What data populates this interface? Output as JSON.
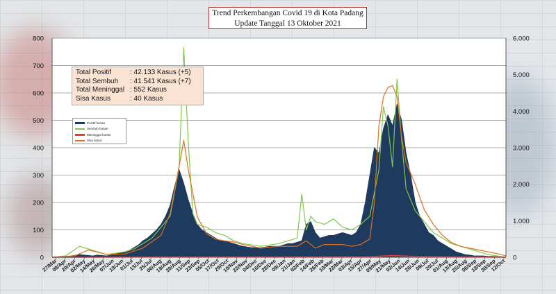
{
  "title_line1": "Trend Perkembangan Covid 19 di Kota Padang",
  "title_line2": "Update Tanggal 13 Oktober 2021",
  "summary": [
    {
      "label": "Total Positif",
      "value": ": 42.133 Kasus (+5)"
    },
    {
      "label": "Total Sembuh",
      "value": ": 41.541 Kasus (+7)"
    },
    {
      "label": "Total Meninggal",
      "value": ":    552 Kasus"
    },
    {
      "label": "Sisa Kasus",
      "value": ":      40 Kasus"
    }
  ],
  "chart_data": {
    "type": "area",
    "grid": true,
    "legend_placement": "left",
    "left_axis": {
      "ylim": [
        0,
        800
      ],
      "ticks": [
        "0",
        "100",
        "200",
        "300",
        "400",
        "500",
        "600",
        "700",
        "800"
      ]
    },
    "right_axis": {
      "ylim": [
        0,
        6000
      ],
      "ticks": [
        "0",
        "1.000",
        "2.000",
        "3.000",
        "4.000",
        "5.000",
        "6.000"
      ]
    },
    "x_ticks": [
      "27/Mar",
      "08/Apr",
      "20/Apr",
      "02/May",
      "14/May",
      "26/May",
      "07/Jun",
      "19/Jun",
      "01/Jul",
      "13/Jul",
      "25/Jul",
      "06/Aug",
      "18/Aug",
      "30/Aug",
      "11/Sep",
      "23/Sep",
      "05/Oct",
      "17/Oct",
      "29/Oct",
      "10/Nov",
      "22/Nov",
      "04/Dec",
      "16/Dec",
      "28/Dec",
      "09/Jan",
      "21/Jan",
      "02/Feb",
      "14/Feb",
      "26/Feb",
      "10/Mar",
      "22/Mar",
      "03/Apr",
      "15/Apr",
      "27/Apr",
      "09/May",
      "21/May",
      "02/Jun",
      "14/Jun",
      "26/Jun",
      "08/Jul",
      "20/Jul",
      "01/Aug",
      "13/Aug",
      "25/Aug",
      "06/Sep",
      "18/Sep",
      "30/Sep",
      "12/Oct"
    ],
    "series": [
      {
        "name": "Positif harian",
        "axis": "left",
        "color": "#1f3a5f",
        "x": [
          0,
          3,
          6,
          9,
          10,
          12,
          14,
          16,
          17,
          18,
          19,
          20,
          21,
          22,
          23,
          24,
          25,
          26,
          27,
          28,
          29,
          30,
          31,
          32,
          33,
          34,
          35,
          36,
          37,
          38,
          40,
          42,
          44,
          46,
          48,
          50,
          51,
          52,
          53,
          54,
          55,
          56,
          57,
          58,
          59,
          60,
          61,
          62,
          63,
          64,
          65,
          66,
          67,
          68,
          69,
          70,
          71,
          72,
          73,
          74,
          75,
          76,
          77,
          78,
          79,
          80,
          81,
          82,
          83,
          84,
          85,
          86,
          87,
          88,
          89,
          90,
          91,
          92,
          93,
          94,
          95,
          96,
          97,
          98,
          99,
          100
        ],
        "values": [
          0,
          2,
          10,
          5,
          8,
          5,
          12,
          20,
          25,
          35,
          45,
          60,
          70,
          85,
          100,
          120,
          150,
          190,
          260,
          320,
          270,
          210,
          160,
          120,
          100,
          90,
          80,
          70,
          60,
          60,
          50,
          40,
          35,
          35,
          40,
          40,
          45,
          50,
          50,
          55,
          60,
          120,
          130,
          90,
          70,
          75,
          80,
          80,
          85,
          90,
          85,
          80,
          90,
          120,
          200,
          300,
          400,
          380,
          470,
          520,
          480,
          560,
          500,
          380,
          300,
          200,
          150,
          120,
          90,
          80,
          60,
          50,
          40,
          30,
          20,
          15,
          10,
          8,
          5,
          5,
          5,
          3,
          3,
          2,
          1,
          0
        ]
      },
      {
        "name": "Sembuh harian",
        "axis": "left",
        "color": "#7ec845",
        "x": [
          0,
          3,
          6,
          9,
          12,
          14,
          16,
          18,
          20,
          22,
          24,
          26,
          28,
          29,
          30,
          31,
          32,
          34,
          36,
          38,
          40,
          42,
          44,
          46,
          48,
          50,
          52,
          54,
          55,
          56,
          57,
          58,
          60,
          62,
          64,
          66,
          68,
          70,
          72,
          73,
          74,
          75,
          76,
          77,
          78,
          80,
          82,
          84,
          86,
          88,
          90,
          92,
          94,
          96,
          98,
          100
        ],
        "values": [
          0,
          5,
          40,
          25,
          10,
          15,
          20,
          30,
          50,
          70,
          110,
          150,
          330,
          765,
          420,
          160,
          120,
          110,
          90,
          80,
          60,
          50,
          45,
          40,
          45,
          50,
          60,
          70,
          230,
          100,
          150,
          130,
          120,
          140,
          110,
          100,
          120,
          150,
          320,
          550,
          480,
          330,
          650,
          430,
          250,
          170,
          130,
          90,
          70,
          50,
          40,
          30,
          20,
          10,
          5,
          0
        ]
      },
      {
        "name": "Meninggal harian",
        "axis": "left",
        "color": "#e53935",
        "x": [
          0,
          25,
          50,
          70,
          75,
          80,
          100
        ],
        "values": [
          0,
          1,
          1,
          2,
          6,
          3,
          0
        ]
      },
      {
        "name": "Sisa kasus",
        "axis": "right",
        "color": "#e0701b",
        "x": [
          0,
          5,
          8,
          12,
          16,
          20,
          24,
          26,
          28,
          29,
          30,
          32,
          34,
          36,
          38,
          40,
          42,
          44,
          46,
          48,
          50,
          52,
          54,
          56,
          58,
          60,
          62,
          64,
          66,
          68,
          70,
          71,
          72,
          73,
          74,
          75,
          76,
          77,
          78,
          80,
          82,
          84,
          86,
          88,
          90,
          92,
          94,
          96,
          98,
          100
        ],
        "values": [
          0,
          40,
          200,
          80,
          90,
          250,
          600,
          1200,
          2500,
          3200,
          2400,
          1100,
          650,
          500,
          450,
          420,
          350,
          300,
          250,
          280,
          300,
          300,
          300,
          450,
          250,
          350,
          350,
          350,
          300,
          350,
          500,
          1500,
          3600,
          4400,
          4650,
          4700,
          4400,
          3300,
          2600,
          2000,
          1300,
          900,
          600,
          400,
          300,
          250,
          200,
          150,
          100,
          40
        ]
      }
    ]
  }
}
